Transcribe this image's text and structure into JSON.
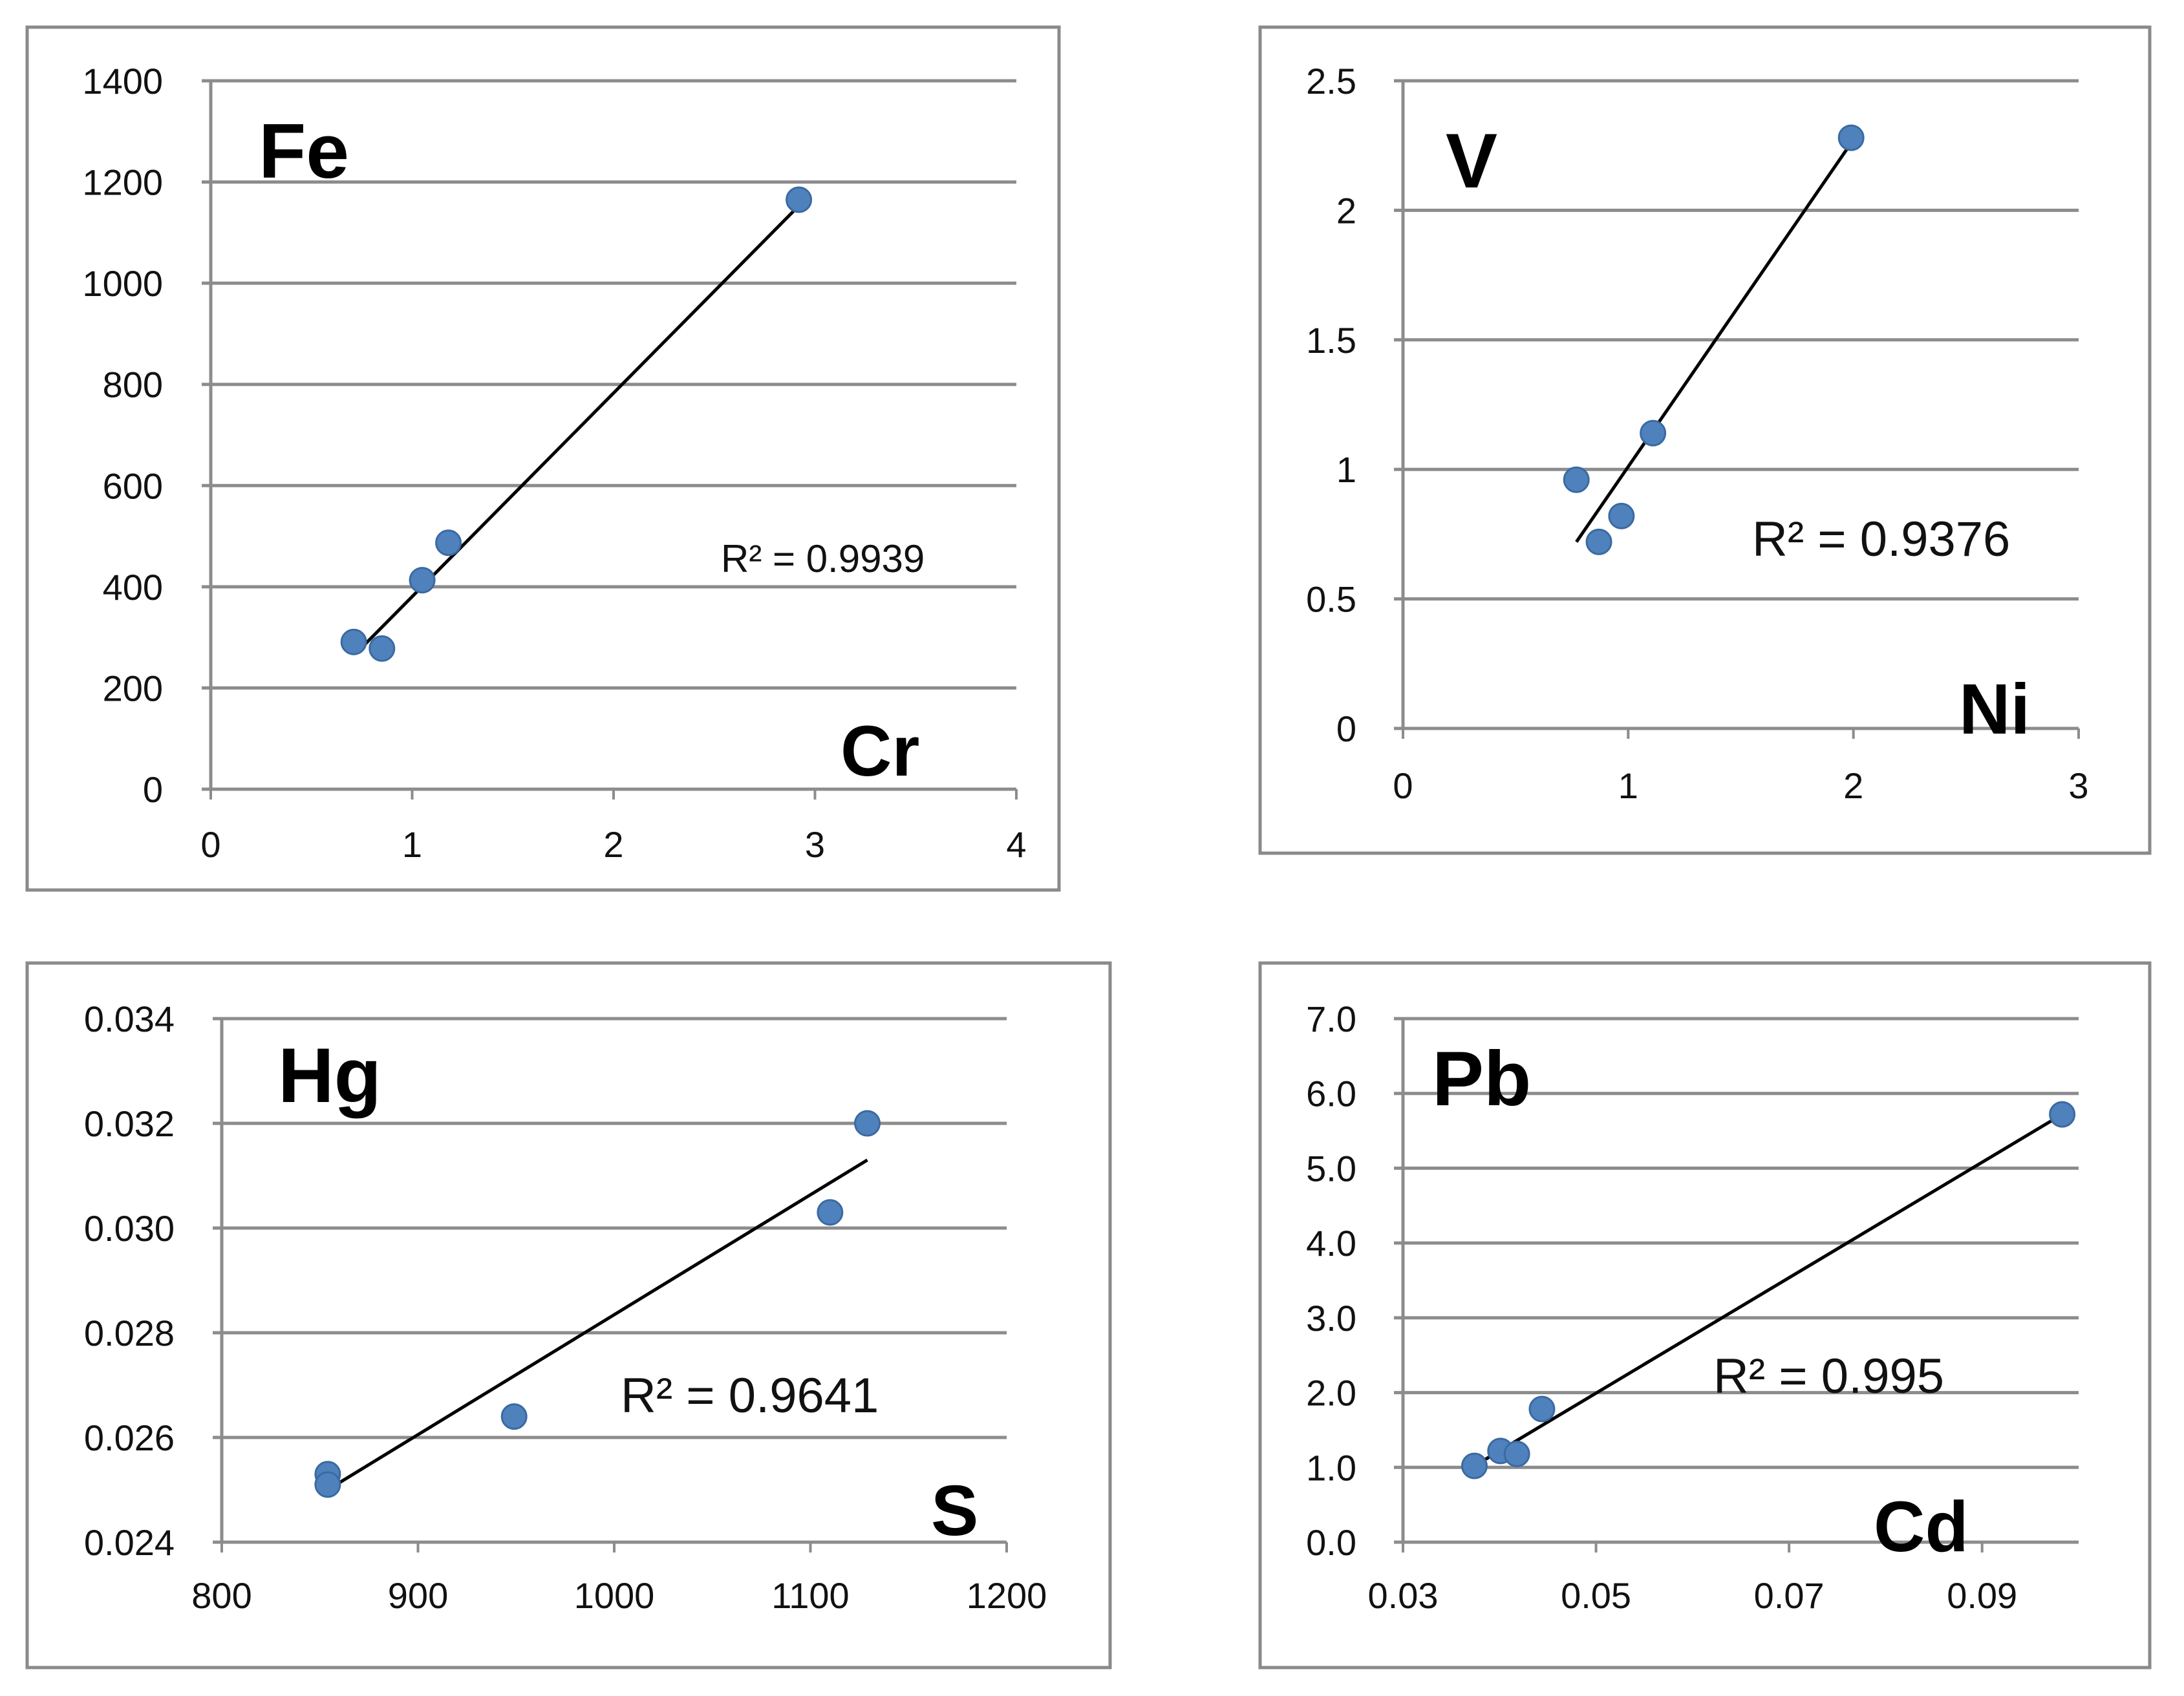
{
  "chart_data": [
    {
      "type": "scatter",
      "y_element": "Fe",
      "x_element": "Cr",
      "r2_label": "R² = 0.9939",
      "xlim": [
        0,
        4
      ],
      "ylim": [
        0,
        1400
      ],
      "x_ticks": [
        "0",
        "1",
        "2",
        "3",
        "4"
      ],
      "y_ticks": [
        "0",
        "200",
        "400",
        "600",
        "800",
        "1000",
        "1200",
        "1400"
      ],
      "points": [
        {
          "x": 0.71,
          "y": 291
        },
        {
          "x": 0.85,
          "y": 278
        },
        {
          "x": 1.05,
          "y": 413
        },
        {
          "x": 1.18,
          "y": 487
        },
        {
          "x": 2.92,
          "y": 1165
        }
      ],
      "trendline": [
        {
          "x": 0.73,
          "y": 272
        },
        {
          "x": 2.92,
          "y": 1153
        }
      ],
      "grid": true
    },
    {
      "type": "scatter",
      "y_element": "V",
      "x_element": "Ni",
      "r2_label": "R² = 0.9376",
      "xlim": [
        0,
        3
      ],
      "ylim": [
        0,
        2.5
      ],
      "x_ticks": [
        "0",
        "1",
        "2",
        "3"
      ],
      "y_ticks": [
        "0",
        "0.5",
        "1",
        "1.5",
        "2",
        "2.5"
      ],
      "points": [
        {
          "x": 0.77,
          "y": 0.96
        },
        {
          "x": 0.87,
          "y": 0.72
        },
        {
          "x": 0.97,
          "y": 0.82
        },
        {
          "x": 1.11,
          "y": 1.14
        },
        {
          "x": 1.99,
          "y": 2.28
        }
      ],
      "trendline": [
        {
          "x": 0.77,
          "y": 0.72
        },
        {
          "x": 1.99,
          "y": 2.26
        }
      ],
      "grid": true
    },
    {
      "type": "scatter",
      "y_element": "Hg",
      "x_element": "S",
      "r2_label": "R² = 0.9641",
      "xlim": [
        800,
        1200
      ],
      "ylim": [
        0.024,
        0.034
      ],
      "x_ticks": [
        "800",
        "900",
        "1000",
        "1100",
        "1200"
      ],
      "y_ticks": [
        "0.024",
        "0.026",
        "0.028",
        "0.030",
        "0.032",
        "0.034"
      ],
      "points": [
        {
          "x": 854,
          "y": 0.0253
        },
        {
          "x": 854,
          "y": 0.0251
        },
        {
          "x": 949,
          "y": 0.0264
        },
        {
          "x": 1110,
          "y": 0.0303
        },
        {
          "x": 1129,
          "y": 0.032
        }
      ],
      "trendline": [
        {
          "x": 854,
          "y": 0.025
        },
        {
          "x": 1129,
          "y": 0.0313
        }
      ],
      "grid": true
    },
    {
      "type": "scatter",
      "y_element": "Pb",
      "x_element": "Cd",
      "r2_label": "R² = 0.995",
      "xlim": [
        0.03,
        0.1
      ],
      "ylim": [
        0,
        7
      ],
      "x_ticks": [
        "0.03",
        "0.05",
        "0.07",
        "0.09"
      ],
      "x_tick_values": [
        0.03,
        0.05,
        0.07,
        0.09
      ],
      "y_ticks": [
        "0.0",
        "1.0",
        "2.0",
        "3.0",
        "4.0",
        "5.0",
        "6.0",
        "7.0"
      ],
      "points": [
        {
          "x": 0.0374,
          "y": 1.02
        },
        {
          "x": 0.0401,
          "y": 1.22
        },
        {
          "x": 0.0418,
          "y": 1.18
        },
        {
          "x": 0.0444,
          "y": 1.78
        },
        {
          "x": 0.0983,
          "y": 5.72
        }
      ],
      "trendline": [
        {
          "x": 0.0374,
          "y": 1.02
        },
        {
          "x": 0.0983,
          "y": 5.72
        }
      ],
      "grid": true
    }
  ]
}
